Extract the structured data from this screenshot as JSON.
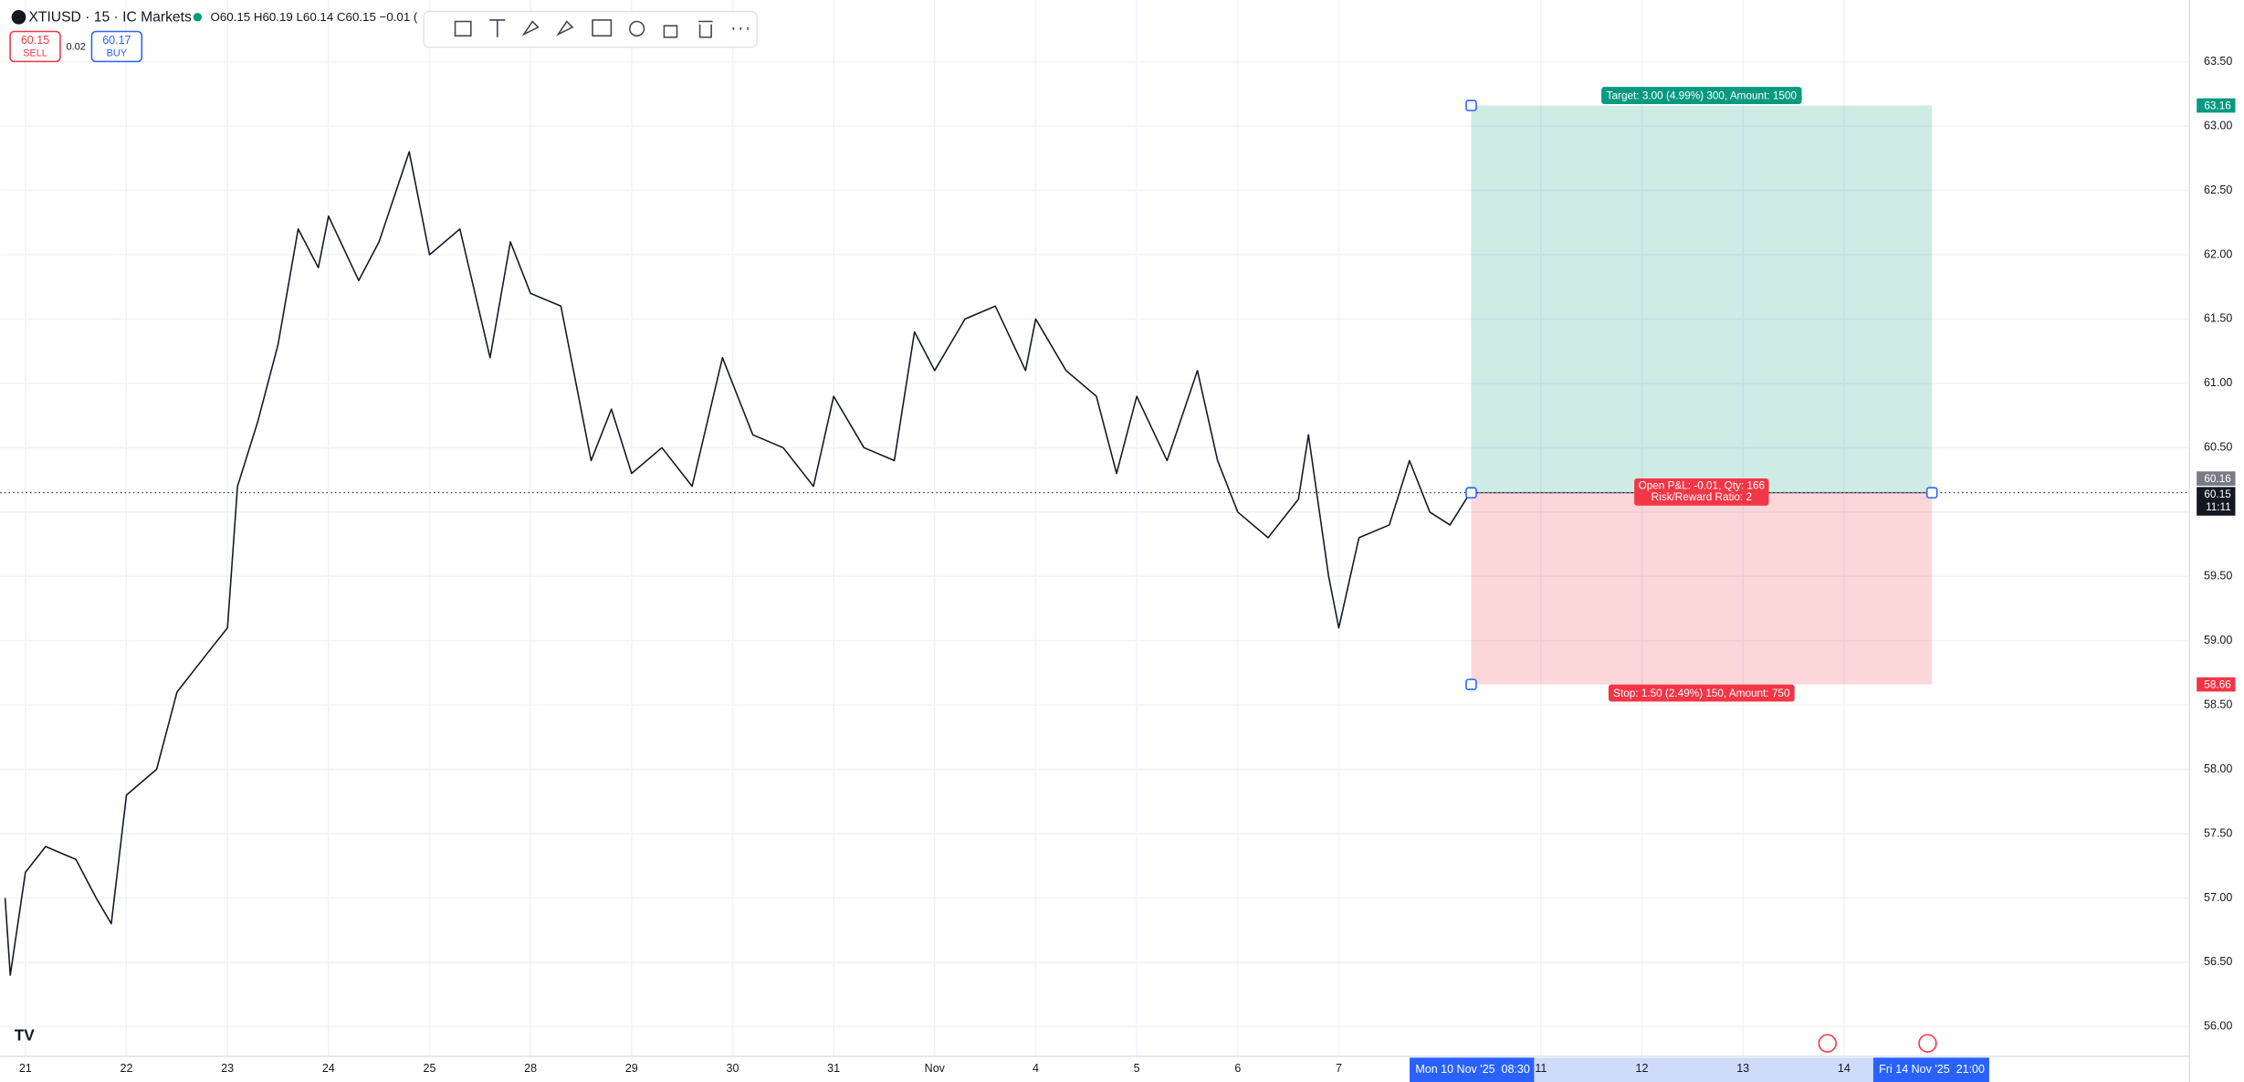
{
  "header": {
    "symbol": "XTIUSD · 15 · IC Markets",
    "ohlc": "O60.15 H60.19 L60.14 C60.15 −0.01 (",
    "sell_price": "60.15",
    "sell": "SELL",
    "spread": "0.02",
    "buy_price": "60.17",
    "buy": "BUY"
  },
  "chart_data": {
    "type": "line",
    "xlim": [
      -0.25,
      21.42
    ],
    "xticks": [
      {
        "value": 0,
        "label": "21"
      },
      {
        "value": 1,
        "label": "22"
      },
      {
        "value": 2,
        "label": "23"
      },
      {
        "value": 3,
        "label": "24"
      },
      {
        "value": 4,
        "label": "25"
      },
      {
        "value": 5,
        "label": "28"
      },
      {
        "value": 6,
        "label": "29"
      },
      {
        "value": 7,
        "label": "30"
      },
      {
        "value": 8,
        "label": "31"
      },
      {
        "value": 9,
        "label": "Nov"
      },
      {
        "value": 10,
        "label": "4"
      },
      {
        "value": 11,
        "label": "5"
      },
      {
        "value": 12,
        "label": "6"
      },
      {
        "value": 13,
        "label": "7"
      },
      {
        "value": 15,
        "label": "11"
      },
      {
        "value": 16,
        "label": "12"
      },
      {
        "value": 17,
        "label": "13"
      },
      {
        "value": 18,
        "label": "14"
      }
    ],
    "ylim": [
      55.77,
      63.98
    ],
    "yticks": [
      {
        "value": 56,
        "label": "56.00"
      },
      {
        "value": 56.5,
        "label": "56.50"
      },
      {
        "value": 57,
        "label": "57.00"
      },
      {
        "value": 57.5,
        "label": "57.50"
      },
      {
        "value": 58,
        "label": "58.00"
      },
      {
        "value": 58.5,
        "label": "58.50"
      },
      {
        "value": 59,
        "label": "59.00"
      },
      {
        "value": 59.5,
        "label": "59.50"
      },
      {
        "value": 60,
        "label": "60.00"
      },
      {
        "value": 60.5,
        "label": "60.50"
      },
      {
        "value": 61,
        "label": "61.00"
      },
      {
        "value": 61.5,
        "label": "61.50"
      },
      {
        "value": 62,
        "label": "62.00"
      },
      {
        "value": 62.5,
        "label": "62.50"
      },
      {
        "value": 63,
        "label": "63.00"
      },
      {
        "value": 63.5,
        "label": "63.50"
      }
    ],
    "grid": true,
    "x": [
      -0.2,
      -0.15,
      0,
      0.2,
      0.5,
      0.7,
      0.85,
      1,
      1.3,
      1.5,
      1.8,
      2,
      2.1,
      2.3,
      2.5,
      2.7,
      2.9,
      3,
      3.3,
      3.5,
      3.8,
      4,
      4.3,
      4.6,
      4.8,
      5,
      5.3,
      5.6,
      5.8,
      6,
      6.3,
      6.6,
      6.9,
      7.2,
      7.5,
      7.8,
      8,
      8.3,
      8.6,
      8.8,
      9,
      9.3,
      9.6,
      9.9,
      10,
      10.3,
      10.6,
      10.8,
      11,
      11.3,
      11.6,
      11.8,
      12,
      12.3,
      12.6,
      12.7,
      12.9,
      13,
      13.2,
      13.5,
      13.7,
      13.9,
      14.1,
      14.3
    ],
    "series": [
      {
        "color": "#131722",
        "values": [
          57.0,
          56.4,
          57.2,
          57.4,
          57.3,
          57.0,
          56.8,
          57.8,
          58.0,
          58.6,
          58.9,
          59.1,
          60.2,
          60.7,
          61.3,
          62.2,
          61.9,
          62.3,
          61.8,
          62.1,
          62.8,
          62.0,
          62.2,
          61.2,
          62.1,
          61.7,
          61.6,
          60.4,
          60.8,
          60.3,
          60.5,
          60.2,
          61.2,
          60.6,
          60.5,
          60.2,
          60.9,
          60.5,
          60.4,
          61.4,
          61.1,
          61.5,
          61.6,
          61.1,
          61.5,
          61.1,
          60.9,
          60.3,
          60.9,
          60.4,
          61.1,
          60.4,
          60.0,
          59.8,
          60.1,
          60.6,
          59.5,
          59.1,
          59.8,
          59.9,
          60.4,
          60.0,
          59.9,
          60.15
        ]
      }
    ],
    "position": {
      "entry": 60.15,
      "target": 63.16,
      "stop": 58.66,
      "target_label": "Target: 3.00 (4.99%) 300, Amount: 1500",
      "stop_label": "Stop: 1.50 (2.49%) 150, Amount: 750",
      "pnl_label": "Open P&L: -0.01, Qty: 166",
      "ratio_label": "Risk/Reward Ratio: 2"
    },
    "markers": [
      {
        "value": 63.16,
        "color": "#089981"
      },
      {
        "value": 60.16,
        "color": "#787b86"
      },
      {
        "value": 60.15,
        "color": "#131722",
        "countdown": "11:11"
      },
      {
        "value": 58.66,
        "color": "#f23645"
      }
    ],
    "time_labels": [
      "Mon 10 Nov '25  08:30",
      "Fri 14 Nov '25  21:00"
    ]
  }
}
